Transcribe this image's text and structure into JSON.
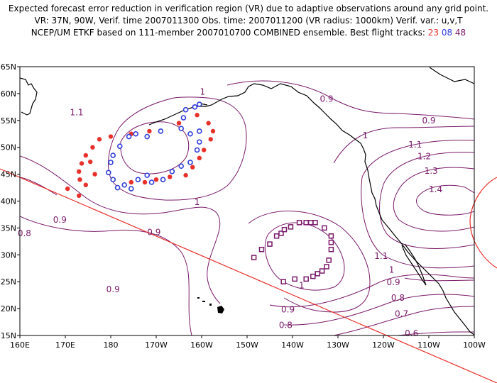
{
  "header": {
    "line1": "Expected forecast error reduction in verification region (VR) due to adaptive observations around any grid point.",
    "line2": "VR: 37N, 90W, Verif. time 2007011300  Obs. time: 2007011200 (VR radius: 1000km)   Verif. var.: u,v,T",
    "line3_prefix": "NCEP/UM ETKF based on 111-member 2007010700 COMBINED ensemble.  Best flight tracks:",
    "tracks": [
      "23",
      "08",
      "48"
    ]
  },
  "map": {
    "lon_range": [
      160,
      260
    ],
    "lat_range": [
      15,
      65
    ],
    "lon_labels": [
      "160E",
      "170E",
      "180",
      "170W",
      "160W",
      "150W",
      "140W",
      "130W",
      "120W",
      "110W",
      "100W"
    ],
    "lat_labels": [
      "15N",
      "20N",
      "25N",
      "30N",
      "35N",
      "40N",
      "45N",
      "50N",
      "55N",
      "60N",
      "65N"
    ],
    "contour_color": "#7a1a6a",
    "contour_labels": [
      {
        "text": "1",
        "lon": 200.2,
        "lat": 60.3
      },
      {
        "text": "1.1",
        "lon": 172.5,
        "lat": 56.5
      },
      {
        "text": "0.9",
        "lon": 227.5,
        "lat": 59.0
      },
      {
        "text": "0.9",
        "lon": 250.0,
        "lat": 55.0
      },
      {
        "text": "1",
        "lon": 236.0,
        "lat": 52.2
      },
      {
        "text": "1.1",
        "lon": 247.0,
        "lat": 50.5
      },
      {
        "text": "1.2",
        "lon": 249.0,
        "lat": 48.3
      },
      {
        "text": "1.3",
        "lon": 250.5,
        "lat": 45.6
      },
      {
        "text": "1.4",
        "lon": 251.5,
        "lat": 42.2
      },
      {
        "text": "1",
        "lon": 199.0,
        "lat": 39.8
      },
      {
        "text": "0.9",
        "lon": 168.8,
        "lat": 36.5
      },
      {
        "text": "0.8",
        "lon": 161.0,
        "lat": 34.0
      },
      {
        "text": "0.9",
        "lon": 189.5,
        "lat": 34.2
      },
      {
        "text": "1.1",
        "lon": 239.5,
        "lat": 29.8
      },
      {
        "text": "1",
        "lon": 241.8,
        "lat": 27.2
      },
      {
        "text": "0.9",
        "lon": 242.2,
        "lat": 24.9
      },
      {
        "text": "1",
        "lon": 222.0,
        "lat": 24.3
      },
      {
        "text": "0.9",
        "lon": 180.5,
        "lat": 23.6
      },
      {
        "text": "0.8",
        "lon": 243.2,
        "lat": 22.0
      },
      {
        "text": "0.9",
        "lon": 219.0,
        "lat": 19.8
      },
      {
        "text": "0.7",
        "lon": 244.0,
        "lat": 19.0
      },
      {
        "text": "0.8",
        "lon": 218.5,
        "lat": 16.9
      },
      {
        "text": "0.6",
        "lon": 246.2,
        "lat": 15.4
      }
    ],
    "tracks": [
      {
        "id": "23",
        "color": "#e8302a",
        "marker": "dot",
        "points": [
          [
            175.5,
            47.3
          ],
          [
            176.5,
            45.0
          ],
          [
            174.5,
            43.0
          ],
          [
            173.0,
            41.0
          ],
          [
            170.5,
            42.3
          ],
          [
            173.2,
            44.0
          ],
          [
            173.0,
            45.5
          ],
          [
            173.6,
            47.0
          ],
          [
            174.5,
            48.5
          ],
          [
            176.0,
            50.0
          ],
          [
            177.5,
            51.5
          ],
          [
            180.0,
            52.0
          ],
          [
            184.5,
            52.5
          ],
          [
            188.5,
            53.0
          ],
          [
            195.0,
            54.5
          ],
          [
            199.0,
            56.0
          ],
          [
            201.5,
            54.5
          ],
          [
            202.5,
            53.0
          ],
          [
            202.0,
            51.5
          ],
          [
            200.5,
            49.5
          ],
          [
            199.5,
            48.0
          ],
          [
            198.0,
            46.3
          ],
          [
            196.5,
            44.8
          ],
          [
            193.0,
            44.5
          ],
          [
            190.0,
            44.0
          ],
          [
            187.5,
            43.5
          ],
          [
            184.5,
            43.5
          ]
        ]
      },
      {
        "id": "08",
        "color": "#2f3fd9",
        "marker": "circle",
        "points": [
          [
            196.0,
            55.5
          ],
          [
            195.5,
            53.5
          ],
          [
            199.5,
            53.0
          ],
          [
            197.5,
            52.5
          ],
          [
            199.5,
            51.0
          ],
          [
            199.0,
            49.5
          ],
          [
            197.5,
            47.2
          ],
          [
            195.5,
            46.5
          ],
          [
            193.5,
            45.5
          ],
          [
            191.5,
            44.0
          ],
          [
            189.0,
            43.5
          ],
          [
            188.0,
            44.8
          ],
          [
            186.0,
            44.0
          ],
          [
            184.5,
            42.3
          ],
          [
            183.0,
            43.0
          ],
          [
            181.5,
            42.5
          ],
          [
            180.5,
            44.0
          ],
          [
            179.5,
            45.3
          ],
          [
            180.0,
            47.2
          ],
          [
            180.5,
            48.5
          ],
          [
            182.0,
            50.2
          ],
          [
            184.0,
            52.0
          ],
          [
            185.5,
            52.5
          ],
          [
            188.0,
            52.0
          ],
          [
            191.0,
            53.0
          ],
          [
            196.5,
            57.0
          ],
          [
            198.5,
            57.5
          ],
          [
            199.5,
            58.0
          ]
        ]
      },
      {
        "id": "48",
        "color": "#7a1a6a",
        "marker": "square",
        "points": [
          [
            211.5,
            29.5
          ],
          [
            213.2,
            31.0
          ],
          [
            215.0,
            32.0
          ],
          [
            216.5,
            33.5
          ],
          [
            217.5,
            34.0
          ],
          [
            218.2,
            34.7
          ],
          [
            219.6,
            35.2
          ],
          [
            221.5,
            36.0
          ],
          [
            223.0,
            36.0
          ],
          [
            224.0,
            36.0
          ],
          [
            225.0,
            36.0
          ],
          [
            227.0,
            35.0
          ],
          [
            228.5,
            33.5
          ],
          [
            228.5,
            32.3
          ],
          [
            228.5,
            31.0
          ],
          [
            228.0,
            29.0
          ],
          [
            227.5,
            27.8
          ],
          [
            226.5,
            27.0
          ],
          [
            225.5,
            26.5
          ],
          [
            224.5,
            26.0
          ],
          [
            223.0,
            25.5
          ],
          [
            220.5,
            25.5
          ],
          [
            218.0,
            25.0
          ]
        ]
      }
    ]
  }
}
